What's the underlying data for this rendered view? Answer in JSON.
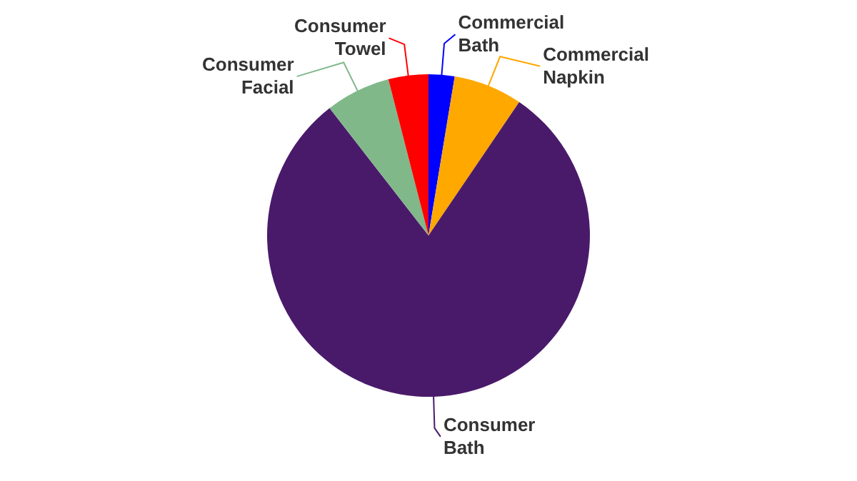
{
  "chart_data": {
    "type": "pie",
    "categories": [
      "Commercial Bath",
      "Commercial Napkin",
      "Consumer Bath",
      "Consumer Facial",
      "Consumer Towel"
    ],
    "values": [
      2.6,
      6.9,
      80,
      6.5,
      4
    ],
    "colors": [
      "#0000ff",
      "#ffa800",
      "#4a1a6a",
      "#80b88a",
      "#ff0000"
    ]
  }
}
